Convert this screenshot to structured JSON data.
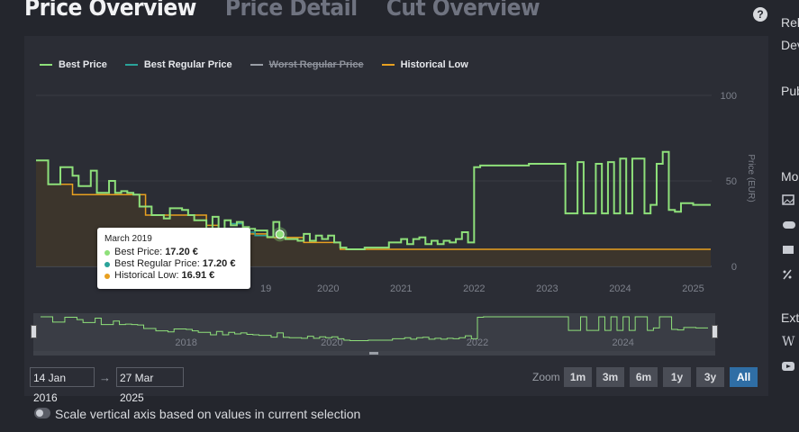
{
  "tabs": [
    {
      "label": "Price Overview",
      "active": true
    },
    {
      "label": "Price Detail",
      "active": false
    },
    {
      "label": "Cut Overview",
      "active": false
    }
  ],
  "help_icon": "?",
  "legend": [
    {
      "label": "Best Price",
      "color": "#8ee07a",
      "enabled": true
    },
    {
      "label": "Best Regular Price",
      "color": "#2aa39a",
      "enabled": true
    },
    {
      "label": "Worst Regular Price",
      "color": "#9a9ea6",
      "enabled": false
    },
    {
      "label": "Historical Low",
      "color": "#e8a020",
      "enabled": true
    }
  ],
  "tooltip": {
    "date": "March 2019",
    "rows": [
      {
        "label": "Best Price:",
        "value": "17.20 €",
        "color": "#8ee07a"
      },
      {
        "label": "Best Regular Price:",
        "value": "17.20 €",
        "color": "#2aa39a"
      },
      {
        "label": "Historical Low:",
        "value": "16.91 €",
        "color": "#e8a020"
      }
    ]
  },
  "chart_data": {
    "type": "line",
    "ylabel": "Price (EUR)",
    "ylim": [
      0,
      100
    ],
    "yticks": [
      "0",
      "50",
      "100"
    ],
    "xticks": [
      "19",
      "2020",
      "2021",
      "2022",
      "2023",
      "2024",
      "2025"
    ],
    "navigator_ticks": [
      "2018",
      "2020",
      "2022",
      "2024"
    ],
    "x_range": [
      "2016-01-14",
      "2025-03-27"
    ],
    "series": [
      {
        "name": "Best Price",
        "color": "#8ee07a",
        "points": [
          [
            "2016-01",
            62
          ],
          [
            "2016-02",
            62
          ],
          [
            "2016-03",
            48
          ],
          [
            "2016-04",
            48
          ],
          [
            "2016-05",
            58
          ],
          [
            "2016-06",
            58
          ],
          [
            "2016-07",
            53
          ],
          [
            "2016-08",
            47
          ],
          [
            "2016-09",
            47
          ],
          [
            "2016-10",
            56
          ],
          [
            "2016-11",
            43
          ],
          [
            "2016-12",
            43
          ],
          [
            "2017-01",
            50
          ],
          [
            "2017-02",
            43
          ],
          [
            "2017-03",
            44
          ],
          [
            "2017-04",
            43
          ],
          [
            "2017-05",
            42
          ],
          [
            "2017-06",
            35
          ],
          [
            "2017-07",
            35
          ],
          [
            "2017-08",
            30
          ],
          [
            "2017-09",
            30
          ],
          [
            "2017-10",
            28
          ],
          [
            "2017-11",
            34
          ],
          [
            "2017-12",
            34
          ],
          [
            "2018-01",
            33
          ],
          [
            "2018-02",
            30
          ],
          [
            "2018-03",
            27
          ],
          [
            "2018-04",
            27
          ],
          [
            "2018-05",
            22
          ],
          [
            "2018-06",
            29
          ],
          [
            "2018-07",
            22
          ],
          [
            "2018-08",
            27
          ],
          [
            "2018-09",
            24
          ],
          [
            "2018-10",
            26
          ],
          [
            "2018-11",
            23
          ],
          [
            "2018-12",
            22
          ],
          [
            "2019-01",
            21
          ],
          [
            "2019-02",
            21
          ],
          [
            "2019-03",
            17.2
          ],
          [
            "2019-04",
            26
          ],
          [
            "2019-05",
            17
          ],
          [
            "2019-06",
            16
          ],
          [
            "2019-07",
            16
          ],
          [
            "2019-08",
            15
          ],
          [
            "2019-09",
            19
          ],
          [
            "2019-10",
            15
          ],
          [
            "2019-11",
            18
          ],
          [
            "2019-12",
            16
          ],
          [
            "2020-01",
            18
          ],
          [
            "2020-02",
            14
          ],
          [
            "2020-03",
            11
          ],
          [
            "2020-04",
            10
          ],
          [
            "2020-05",
            10
          ],
          [
            "2020-06",
            10
          ],
          [
            "2020-07",
            11
          ],
          [
            "2020-08",
            11
          ],
          [
            "2020-09",
            11
          ],
          [
            "2020-10",
            11
          ],
          [
            "2020-11",
            14
          ],
          [
            "2020-12",
            14
          ],
          [
            "2021-01",
            16
          ],
          [
            "2021-02",
            13
          ],
          [
            "2021-03",
            16
          ],
          [
            "2021-04",
            17
          ],
          [
            "2021-05",
            13
          ],
          [
            "2021-06",
            15
          ],
          [
            "2021-07",
            13
          ],
          [
            "2021-08",
            15
          ],
          [
            "2021-09",
            14
          ],
          [
            "2021-10",
            16
          ],
          [
            "2021-11",
            20
          ],
          [
            "2021-12",
            14
          ],
          [
            "2022-01",
            58
          ],
          [
            "2022-02",
            59
          ],
          [
            "2022-03",
            59
          ],
          [
            "2022-06",
            59
          ],
          [
            "2022-10",
            60
          ],
          [
            "2023-03",
            60
          ],
          [
            "2023-04",
            31
          ],
          [
            "2023-05",
            31
          ],
          [
            "2023-06",
            61
          ],
          [
            "2023-07",
            31
          ],
          [
            "2023-08",
            31
          ],
          [
            "2023-09",
            60
          ],
          [
            "2023-10",
            31
          ],
          [
            "2023-11",
            61
          ],
          [
            "2023-12",
            31
          ],
          [
            "2024-01",
            63
          ],
          [
            "2024-02",
            31
          ],
          [
            "2024-03",
            63
          ],
          [
            "2024-04",
            63
          ],
          [
            "2024-05",
            31
          ],
          [
            "2024-06",
            36
          ],
          [
            "2024-07",
            60
          ],
          [
            "2024-08",
            67
          ],
          [
            "2024-09",
            33
          ],
          [
            "2024-10",
            32
          ],
          [
            "2024-11",
            37
          ],
          [
            "2024-12",
            37
          ],
          [
            "2025-01",
            36
          ],
          [
            "2025-03",
            36
          ]
        ]
      },
      {
        "name": "Best Regular Price",
        "color": "#2aa39a",
        "points": [
          [
            "2018-09",
            25
          ],
          [
            "2018-10",
            25
          ],
          [
            "2018-11",
            22
          ],
          [
            "2018-12",
            20
          ],
          [
            "2019-01",
            18
          ],
          [
            "2019-03",
            17.2
          ]
        ]
      },
      {
        "name": "Historical Low",
        "color": "#e8a020",
        "points": [
          [
            "2016-01",
            62
          ],
          [
            "2016-03",
            48
          ],
          [
            "2016-07",
            42
          ],
          [
            "2017-07",
            30
          ],
          [
            "2018-05",
            24
          ],
          [
            "2018-07",
            22
          ],
          [
            "2018-12",
            19
          ],
          [
            "2019-03",
            16.91
          ],
          [
            "2019-09",
            14
          ],
          [
            "2020-03",
            10
          ],
          [
            "2025-03",
            10
          ]
        ]
      }
    ]
  },
  "range": {
    "from": "14 Jan 2016",
    "to": "27 Mar 2025",
    "arrow": "→"
  },
  "zoom": {
    "label": "Zoom",
    "buttons": [
      "1m",
      "3m",
      "6m",
      "1y",
      "3y",
      "All"
    ],
    "active": "All"
  },
  "toggle_label": "Scale vertical axis based on values in current selection",
  "sidebar": {
    "cut_text": [
      "Rel",
      "Dev",
      "Pub",
      "Mo",
      "Ext"
    ],
    "icons": [
      "image-icon",
      "gamepad-icon",
      "box-icon",
      "percent-icon",
      "wikipedia-icon",
      "youtube-icon"
    ]
  }
}
